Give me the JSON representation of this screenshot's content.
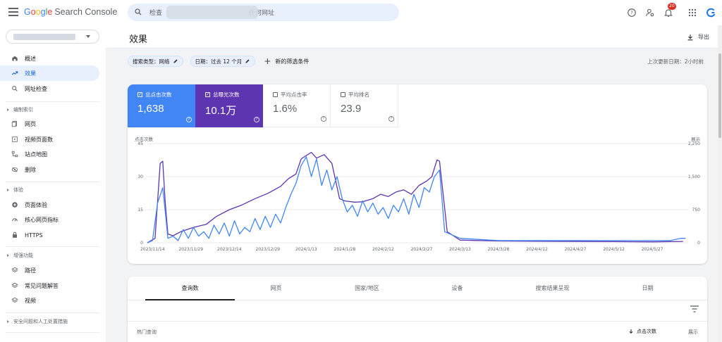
{
  "app": {
    "logo_google_parts": [
      "G",
      "o",
      "o",
      "g",
      "l",
      "e"
    ],
    "logo_product": "Search Console",
    "search_placeholder_prefix": "检查",
    "search_placeholder_suffix": "任何网址",
    "notification_count": "20"
  },
  "sidebar": {
    "items": [
      {
        "label": "概述",
        "icon": "home-icon",
        "active": false
      },
      {
        "label": "效果",
        "icon": "trending-up-icon",
        "active": true
      },
      {
        "label": "网址检查",
        "icon": "search-icon",
        "active": false
      }
    ],
    "sections": [
      {
        "title": "编制索引",
        "items": [
          {
            "label": "网页",
            "icon": "pages-icon"
          },
          {
            "label": "视频页面数",
            "icon": "video-pages-icon"
          },
          {
            "label": "站点地图",
            "icon": "sitemap-icon"
          },
          {
            "label": "删除",
            "icon": "removal-icon"
          }
        ]
      },
      {
        "title": "体验",
        "items": [
          {
            "label": "页面体验",
            "icon": "page-experience-icon"
          },
          {
            "label": "核心网页指标",
            "icon": "speed-icon"
          },
          {
            "label": "HTTPS",
            "icon": "lock-icon"
          }
        ]
      },
      {
        "title": "增强功能",
        "items": [
          {
            "label": "路径",
            "icon": "layers-icon"
          },
          {
            "label": "常见问题解答",
            "icon": "layers-icon"
          },
          {
            "label": "视频",
            "icon": "layers-icon"
          }
        ]
      }
    ],
    "bottom_section": "安全问题和人工处置措施"
  },
  "page": {
    "title": "效果",
    "export_label": "导出",
    "filters": [
      {
        "label": "搜索类型：网络"
      },
      {
        "label": "日期：过去 12 个月"
      }
    ],
    "new_filter_label": "新的筛选条件",
    "last_updated": "上次更新日期：2小时前"
  },
  "metrics": [
    {
      "label": "总点击次数",
      "value": "1,638",
      "selected": true,
      "color": "#4285f4"
    },
    {
      "label": "总曝光次数",
      "value": "10.1万",
      "selected": true,
      "color": "#5e35b1"
    },
    {
      "label": "平均点击率",
      "value": "1.6%",
      "selected": false
    },
    {
      "label": "平均排名",
      "value": "23.9",
      "selected": false
    }
  ],
  "chart_data": {
    "type": "line",
    "left_axis_label": "点击次数",
    "right_axis_label": "展示",
    "left_ticks": [
      "45",
      "30",
      "15",
      "0"
    ],
    "right_ticks": [
      "2,250",
      "1,500",
      "750",
      "0"
    ],
    "left_range": [
      0,
      45
    ],
    "right_range": [
      0,
      2250
    ],
    "grid": true,
    "x_tick_labels": [
      "2023/11/14",
      "2023/11/29",
      "2023/12/14",
      "2023/12/29",
      "2024/1/13",
      "2024/1/28",
      "2024/2/12",
      "2024/2/27",
      "2024/3/13",
      "2024/3/28",
      "2024/4/12",
      "2024/4/27",
      "2024/5/12",
      "2024/5/27"
    ],
    "x_range": [
      "2023/11/12",
      "2024/6/10"
    ],
    "series": [
      {
        "axis": "right",
        "color": "#5e35b1",
        "x": [
          "2023/11/12",
          "2023/11/15",
          "2023/11/17",
          "2023/11/18",
          "2023/11/19",
          "2023/11/20",
          "2023/11/22",
          "2023/11/25",
          "2023/11/30",
          "2023/12/5",
          "2023/12/9",
          "2023/12/14",
          "2023/12/19",
          "2023/12/24",
          "2023/12/29",
          "2024/1/3",
          "2024/1/6",
          "2024/1/9",
          "2024/1/11",
          "2024/1/13",
          "2024/1/15",
          "2024/1/17",
          "2024/1/20",
          "2024/1/23",
          "2024/1/26",
          "2024/1/28",
          "2024/2/1",
          "2024/2/4",
          "2024/2/8",
          "2024/2/11",
          "2024/2/14",
          "2024/2/17",
          "2024/2/20",
          "2024/2/23",
          "2024/2/26",
          "2024/2/29",
          "2024/3/2",
          "2024/3/4",
          "2024/3/5",
          "2024/3/8",
          "2024/3/13",
          "2024/3/28",
          "2024/4/12",
          "2024/4/27",
          "2024/5/12",
          "2024/5/27",
          "2024/6/8"
        ],
        "values": [
          0,
          100,
          1800,
          1850,
          900,
          200,
          160,
          250,
          350,
          420,
          600,
          750,
          860,
          1000,
          1120,
          1280,
          1450,
          1560,
          1900,
          1980,
          2050,
          1920,
          2000,
          1800,
          1000,
          950,
          920,
          930,
          1000,
          1100,
          1050,
          1150,
          1200,
          1100,
          1300,
          1400,
          1500,
          1880,
          1850,
          250,
          60,
          40,
          35,
          30,
          25,
          20,
          30
        ]
      },
      {
        "axis": "left",
        "color": "#4285f4",
        "x": [
          "2023/11/12",
          "2023/11/14",
          "2023/11/16",
          "2023/11/18",
          "2023/11/19",
          "2023/11/20",
          "2023/11/22",
          "2023/11/24",
          "2023/11/26",
          "2023/11/28",
          "2023/11/30",
          "2023/12/2",
          "2023/12/4",
          "2023/12/6",
          "2023/12/8",
          "2023/12/10",
          "2023/12/12",
          "2023/12/14",
          "2023/12/16",
          "2023/12/18",
          "2023/12/20",
          "2023/12/22",
          "2023/12/24",
          "2023/12/26",
          "2023/12/28",
          "2023/12/30",
          "2024/1/1",
          "2024/1/3",
          "2024/1/5",
          "2024/1/7",
          "2024/1/9",
          "2024/1/11",
          "2024/1/13",
          "2024/1/15",
          "2024/1/17",
          "2024/1/19",
          "2024/1/21",
          "2024/1/23",
          "2024/1/25",
          "2024/1/27",
          "2024/1/29",
          "2024/1/31",
          "2024/2/2",
          "2024/2/4",
          "2024/2/6",
          "2024/2/8",
          "2024/2/10",
          "2024/2/12",
          "2024/2/14",
          "2024/2/16",
          "2024/2/18",
          "2024/2/20",
          "2024/2/22",
          "2024/2/24",
          "2024/2/26",
          "2024/2/28",
          "2024/3/1",
          "2024/3/3",
          "2024/3/5",
          "2024/3/7",
          "2024/3/13",
          "2024/3/28",
          "2024/4/12",
          "2024/4/27",
          "2024/5/12",
          "2024/5/27",
          "2024/6/3",
          "2024/6/7",
          "2024/6/9"
        ],
        "values": [
          0,
          1,
          18,
          25,
          14,
          2,
          3,
          1,
          6,
          2,
          7,
          3,
          5,
          2,
          8,
          4,
          9,
          3,
          10,
          4,
          7,
          5,
          11,
          6,
          12,
          7,
          13,
          9,
          16,
          22,
          27,
          35,
          39,
          30,
          38,
          26,
          33,
          24,
          30,
          20,
          14,
          17,
          12,
          19,
          14,
          18,
          13,
          16,
          11,
          17,
          14,
          20,
          13,
          22,
          16,
          25,
          23,
          30,
          33,
          5,
          2,
          1,
          1,
          1,
          1,
          1,
          1,
          2,
          2
        ]
      }
    ]
  },
  "table": {
    "tabs": [
      {
        "label": "查询数",
        "active": true
      },
      {
        "label": "网页",
        "active": false
      },
      {
        "label": "国家/地区",
        "active": false
      },
      {
        "label": "设备",
        "active": false
      },
      {
        "label": "搜索结果呈现",
        "active": false
      },
      {
        "label": "日期",
        "active": false
      }
    ],
    "col_query": "热门查询",
    "col_clicks": "点击次数",
    "col_impressions": "展示"
  }
}
